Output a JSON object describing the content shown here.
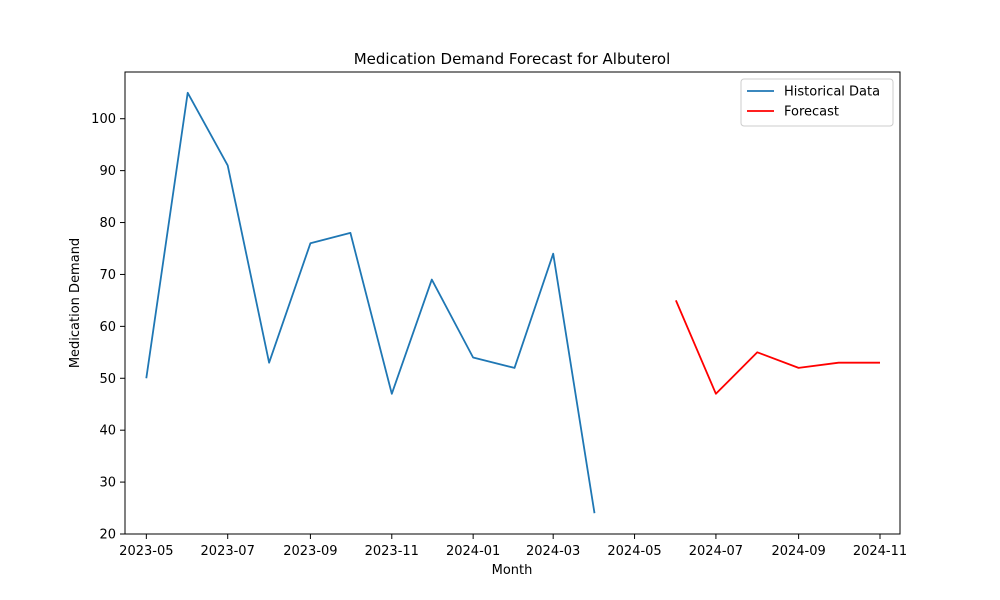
{
  "chart_data": {
    "type": "line",
    "title": "Medication Demand Forecast for Albuterol",
    "xlabel": "Month",
    "ylabel": "Medication Demand",
    "ylim": [
      20,
      109
    ],
    "xlim": [
      "2023-04-15",
      "2024-11-16"
    ],
    "x_ticks": [
      "2023-05",
      "2023-07",
      "2023-09",
      "2023-11",
      "2024-01",
      "2024-03",
      "2024-05",
      "2024-07",
      "2024-09",
      "2024-11"
    ],
    "y_ticks": [
      20,
      30,
      40,
      50,
      60,
      70,
      80,
      90,
      100
    ],
    "grid": false,
    "legend_position": "top-right",
    "series": [
      {
        "name": "Historical Data",
        "color": "#1f77b4",
        "x": [
          "2023-05-01",
          "2023-06-01",
          "2023-07-01",
          "2023-08-01",
          "2023-09-01",
          "2023-10-01",
          "2023-11-01",
          "2023-12-01",
          "2024-01-01",
          "2024-02-01",
          "2024-03-01",
          "2024-04-01"
        ],
        "values": [
          50,
          105,
          91,
          53,
          76,
          78,
          47,
          69,
          54,
          52,
          74,
          24
        ]
      },
      {
        "name": "Forecast",
        "color": "#ff0000",
        "x": [
          "2024-06-01",
          "2024-07-01",
          "2024-08-01",
          "2024-09-01",
          "2024-10-01",
          "2024-11-01"
        ],
        "values": [
          65,
          47,
          55,
          52,
          53,
          53
        ]
      }
    ]
  }
}
